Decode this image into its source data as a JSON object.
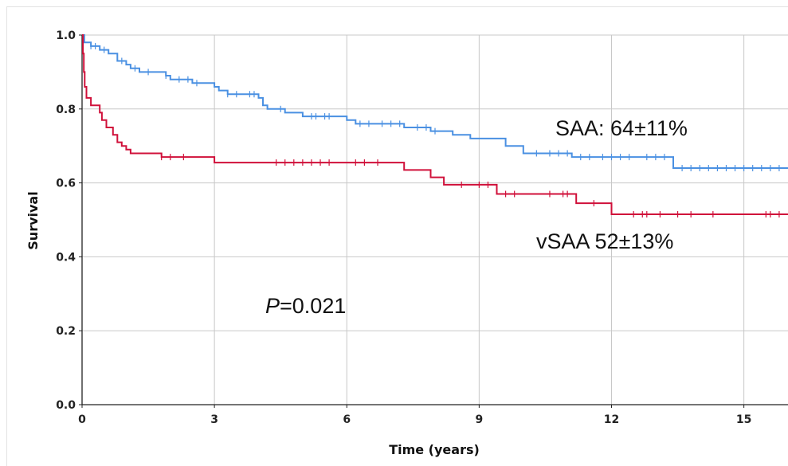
{
  "chart_data": {
    "type": "line",
    "xlabel": "Time (years)",
    "ylabel": "Survival",
    "xlim": [
      0,
      16
    ],
    "ylim": [
      0,
      1.0
    ],
    "x_ticks": [
      "0",
      "3",
      "6",
      "9",
      "12",
      "15"
    ],
    "y_ticks": [
      "0.0",
      "0.2",
      "0.4",
      "0.6",
      "0.8",
      "1.0"
    ],
    "grid": true,
    "series": [
      {
        "id": "saa",
        "color": "#4a90e2",
        "steps": [
          [
            0,
            1.0
          ],
          [
            0.05,
            0.98
          ],
          [
            0.2,
            0.97
          ],
          [
            0.4,
            0.96
          ],
          [
            0.6,
            0.95
          ],
          [
            0.8,
            0.93
          ],
          [
            1.0,
            0.92
          ],
          [
            1.1,
            0.91
          ],
          [
            1.3,
            0.9
          ],
          [
            1.9,
            0.89
          ],
          [
            2.0,
            0.88
          ],
          [
            2.5,
            0.87
          ],
          [
            3.0,
            0.86
          ],
          [
            3.1,
            0.85
          ],
          [
            3.3,
            0.84
          ],
          [
            4.0,
            0.83
          ],
          [
            4.1,
            0.81
          ],
          [
            4.2,
            0.8
          ],
          [
            4.6,
            0.79
          ],
          [
            5.0,
            0.78
          ],
          [
            6.0,
            0.77
          ],
          [
            6.2,
            0.76
          ],
          [
            7.3,
            0.75
          ],
          [
            7.9,
            0.74
          ],
          [
            8.4,
            0.73
          ],
          [
            8.8,
            0.72
          ],
          [
            9.6,
            0.7
          ],
          [
            10.0,
            0.68
          ],
          [
            11.1,
            0.67
          ],
          [
            13.4,
            0.64
          ],
          [
            16.0,
            0.64
          ]
        ],
        "censor_x": [
          0.2,
          0.3,
          0.5,
          0.9,
          1.2,
          1.5,
          1.9,
          2.2,
          2.4,
          2.6,
          3.3,
          3.5,
          3.8,
          3.9,
          4.5,
          5.2,
          5.3,
          5.5,
          5.6,
          6.3,
          6.5,
          6.8,
          7.0,
          7.2,
          7.6,
          7.8,
          8.0,
          10.3,
          10.6,
          10.8,
          11.0,
          11.3,
          11.5,
          11.8,
          12.0,
          12.2,
          12.4,
          12.8,
          13.0,
          13.2,
          13.6,
          13.8,
          14.0,
          14.2,
          14.4,
          14.6,
          14.8,
          15.0,
          15.2,
          15.4,
          15.6,
          15.8
        ],
        "label": "SAA: 64±11%"
      },
      {
        "id": "vsaa",
        "color": "#d0103a",
        "steps": [
          [
            0,
            1.0
          ],
          [
            0.02,
            0.95
          ],
          [
            0.04,
            0.9
          ],
          [
            0.06,
            0.86
          ],
          [
            0.1,
            0.83
          ],
          [
            0.2,
            0.81
          ],
          [
            0.4,
            0.79
          ],
          [
            0.45,
            0.77
          ],
          [
            0.55,
            0.75
          ],
          [
            0.7,
            0.73
          ],
          [
            0.8,
            0.71
          ],
          [
            0.9,
            0.7
          ],
          [
            1.0,
            0.69
          ],
          [
            1.1,
            0.68
          ],
          [
            1.8,
            0.67
          ],
          [
            3.0,
            0.655
          ],
          [
            7.3,
            0.635
          ],
          [
            7.9,
            0.615
          ],
          [
            8.2,
            0.595
          ],
          [
            9.4,
            0.57
          ],
          [
            11.2,
            0.545
          ],
          [
            12.0,
            0.515
          ],
          [
            16.0,
            0.515
          ]
        ],
        "censor_x": [
          1.8,
          2.0,
          2.3,
          4.4,
          4.6,
          4.8,
          5.0,
          5.2,
          5.4,
          5.6,
          6.2,
          6.4,
          6.7,
          8.6,
          9.0,
          9.2,
          9.6,
          9.8,
          10.6,
          10.9,
          11.0,
          11.6,
          12.5,
          12.7,
          12.8,
          13.1,
          13.5,
          13.8,
          14.3,
          15.5,
          15.6,
          15.8
        ],
        "label": "vSAA 52±13%"
      }
    ],
    "annotation": {
      "italic": "P",
      "text": "=0.021"
    }
  }
}
